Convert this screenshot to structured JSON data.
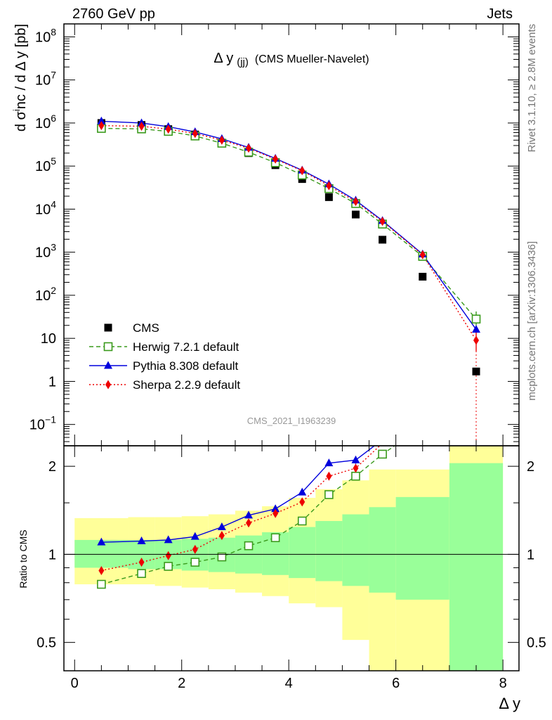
{
  "header": {
    "left": "2760 GeV pp",
    "right": "Jets"
  },
  "side_labels": {
    "top": "Rivet 3.1.10, ≥ 2.8M events",
    "bottom": "mcplots.cern.ch [arXiv:1306.3436]"
  },
  "watermark": "CMS_2021_I1963239",
  "colors": {
    "cms": "#000000",
    "herwig": "#3a9a1c",
    "pythia": "#0000dd",
    "sherpa": "#ee0000",
    "band_inner": "#99ff99",
    "band_outer": "#ffff99"
  },
  "chart_data": [
    {
      "type": "scatter",
      "title": "Δ y(jj) (CMS Mueller-Navelet)",
      "title_main": "Δ y",
      "title_sub": "(jj)",
      "title_rest": "(CMS Mueller-Navelet)",
      "ylabel": "d σinc / d Δ y [pb]",
      "ylabel_parts": {
        "a": "d ",
        "sigma": "σ",
        "sup": "i",
        "b": "nc / d Δ y [pb]"
      },
      "xlabel": "Δ y",
      "yscale": "log",
      "xlim": [
        -0.2,
        8.3
      ],
      "ylim": [
        0.032,
        200000000
      ],
      "yticks": [
        {
          "v": 100000000,
          "base": "10",
          "exp": "8"
        },
        {
          "v": 10000000,
          "base": "10",
          "exp": "7"
        },
        {
          "v": 1000000,
          "base": "10",
          "exp": "6"
        },
        {
          "v": 100000,
          "base": "10",
          "exp": "5"
        },
        {
          "v": 10000,
          "base": "10",
          "exp": "4"
        },
        {
          "v": 1000,
          "base": "10",
          "exp": "3"
        },
        {
          "v": 100,
          "base": "10",
          "exp": "2"
        },
        {
          "v": 10,
          "base": "10",
          "exp": ""
        },
        {
          "v": 1,
          "base": "1",
          "exp": ""
        },
        {
          "v": 0.1,
          "base": "10",
          "exp": "−1"
        }
      ],
      "legend_position": "bottom-left",
      "series": [
        {
          "name": "CMS",
          "style": "square",
          "x": [
            0.5,
            1.25,
            1.75,
            2.25,
            2.75,
            3.25,
            3.75,
            4.25,
            4.75,
            5.25,
            5.75,
            6.5,
            7.5
          ],
          "y": [
            1000000,
            900000,
            720000,
            540000,
            340000,
            200000,
            105000,
            50000,
            19000,
            7500,
            1950,
            270,
            1.7
          ]
        },
        {
          "name": "Herwig 7.2.1 default",
          "style": "open-square-dashed",
          "x": [
            0.5,
            1.25,
            1.75,
            2.25,
            2.75,
            3.25,
            3.75,
            4.25,
            4.75,
            5.25,
            5.75,
            6.5,
            7.5
          ],
          "y": [
            750000,
            730000,
            640000,
            500000,
            340000,
            210000,
            120000,
            62000,
            30000,
            13500,
            4500,
            800,
            28
          ]
        },
        {
          "name": "Pythia 8.308 default",
          "style": "triangle-solid",
          "x": [
            0.5,
            1.25,
            1.75,
            2.25,
            2.75,
            3.25,
            3.75,
            4.25,
            4.75,
            5.25,
            5.75,
            6.5,
            7.5
          ],
          "y": [
            1100000,
            1000000,
            820000,
            620000,
            430000,
            270000,
            150000,
            80000,
            38000,
            16000,
            5400,
            900,
            16
          ]
        },
        {
          "name": "Sherpa 2.2.9 default",
          "style": "diamond-dotted",
          "x": [
            0.5,
            1.25,
            1.75,
            2.25,
            2.75,
            3.25,
            3.75,
            4.25,
            4.75,
            5.25,
            5.75,
            6.5,
            7.5
          ],
          "y": [
            870000,
            840000,
            720000,
            570000,
            400000,
            260000,
            145000,
            78000,
            35000,
            15000,
            5200,
            870,
            9
          ]
        }
      ]
    },
    {
      "type": "line",
      "ylabel": "Ratio to CMS",
      "yscale": "log",
      "xlim": [
        -0.2,
        8.3
      ],
      "ylim": [
        0.4,
        2.35
      ],
      "yticks": [
        0.5,
        1,
        2
      ],
      "xticks": [
        0,
        2,
        4,
        6,
        8
      ],
      "bands": {
        "edges": [
          0,
          1,
          1.5,
          2,
          2.5,
          3,
          3.5,
          4,
          4.5,
          5,
          5.5,
          6,
          7,
          8
        ],
        "inner_low": [
          0.9,
          0.89,
          0.89,
          0.88,
          0.87,
          0.86,
          0.85,
          0.83,
          0.81,
          0.78,
          0.74,
          0.7,
          0.4
        ],
        "inner_high": [
          1.12,
          1.12,
          1.12,
          1.13,
          1.14,
          1.16,
          1.19,
          1.24,
          1.3,
          1.37,
          1.45,
          1.57,
          2.05
        ],
        "outer_low": [
          0.79,
          0.79,
          0.78,
          0.77,
          0.76,
          0.74,
          0.72,
          0.68,
          0.66,
          0.51,
          0.37,
          0.37,
          0.37
        ],
        "outer_high": [
          1.33,
          1.34,
          1.34,
          1.35,
          1.37,
          1.41,
          1.46,
          1.56,
          1.67,
          1.79,
          1.95,
          1.95,
          2.35
        ]
      },
      "series": [
        {
          "name": "Herwig 7.2.1 default",
          "x": [
            0.5,
            1.25,
            1.75,
            2.25,
            2.75,
            3.25,
            3.75,
            4.25,
            4.75,
            5.25,
            5.75,
            5.98
          ],
          "y": [
            0.79,
            0.86,
            0.91,
            0.94,
            0.98,
            1.07,
            1.14,
            1.3,
            1.6,
            1.85,
            2.2,
            2.35
          ]
        },
        {
          "name": "Pythia 8.308 default",
          "x": [
            0.5,
            1.25,
            1.75,
            2.25,
            2.75,
            3.25,
            3.75,
            4.25,
            4.75,
            5.25,
            5.6
          ],
          "y": [
            1.1,
            1.11,
            1.12,
            1.15,
            1.24,
            1.36,
            1.43,
            1.63,
            2.05,
            2.1,
            2.35
          ]
        },
        {
          "name": "Sherpa 2.2.9 default",
          "x": [
            0.5,
            1.25,
            1.75,
            2.25,
            2.75,
            3.25,
            3.75,
            4.25,
            4.75,
            5.25,
            5.7
          ],
          "y": [
            0.88,
            0.94,
            0.99,
            1.04,
            1.16,
            1.28,
            1.38,
            1.51,
            1.85,
            1.97,
            2.35
          ]
        }
      ]
    }
  ]
}
